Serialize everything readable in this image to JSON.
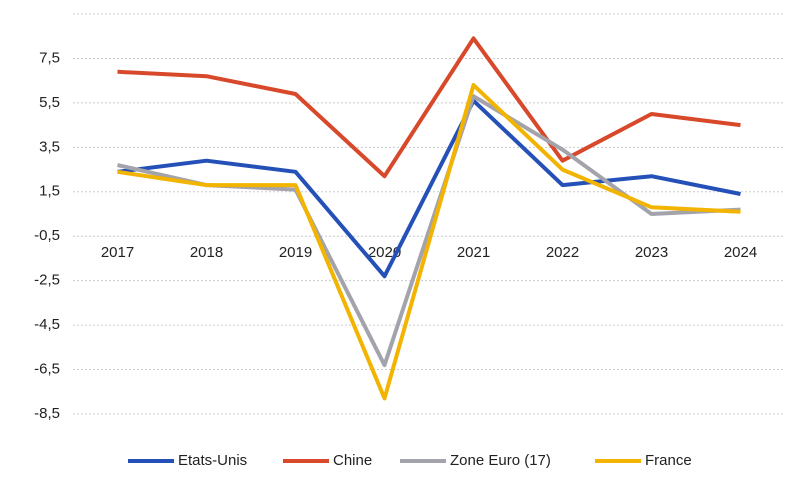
{
  "chart_data": {
    "type": "line",
    "categories": [
      "2017",
      "2018",
      "2019",
      "2020",
      "2021",
      "2022",
      "2023",
      "2024"
    ],
    "series": [
      {
        "name": "Etats-Unis",
        "color": "#2450b8",
        "values": [
          2.4,
          2.9,
          2.4,
          -2.3,
          5.6,
          1.8,
          2.2,
          1.4
        ]
      },
      {
        "name": "Chine",
        "color": "#d8482a",
        "values": [
          6.9,
          6.7,
          5.9,
          2.2,
          8.4,
          2.9,
          5.0,
          4.5
        ]
      },
      {
        "name": "Zone Euro (17)",
        "color": "#a3a3ab",
        "values": [
          2.7,
          1.8,
          1.6,
          -6.3,
          5.8,
          3.4,
          0.5,
          0.7
        ]
      },
      {
        "name": "France",
        "color": "#f2b400",
        "values": [
          2.4,
          1.8,
          1.8,
          -7.8,
          6.3,
          2.5,
          0.8,
          0.6
        ]
      }
    ],
    "ylim": [
      -8.5,
      9.5
    ],
    "yticks": [
      {
        "value": 7.5,
        "label": "7,5"
      },
      {
        "value": 5.5,
        "label": "5,5"
      },
      {
        "value": 3.5,
        "label": "3,5"
      },
      {
        "value": 1.5,
        "label": "1,5"
      },
      {
        "value": -0.5,
        "label": "-0,5"
      },
      {
        "value": -2.5,
        "label": "-2,5"
      },
      {
        "value": -4.5,
        "label": "-4,5"
      },
      {
        "value": -6.5,
        "label": "-6,5"
      },
      {
        "value": -8.5,
        "label": "-8,5"
      }
    ],
    "grid": true,
    "legend": "bottom"
  }
}
